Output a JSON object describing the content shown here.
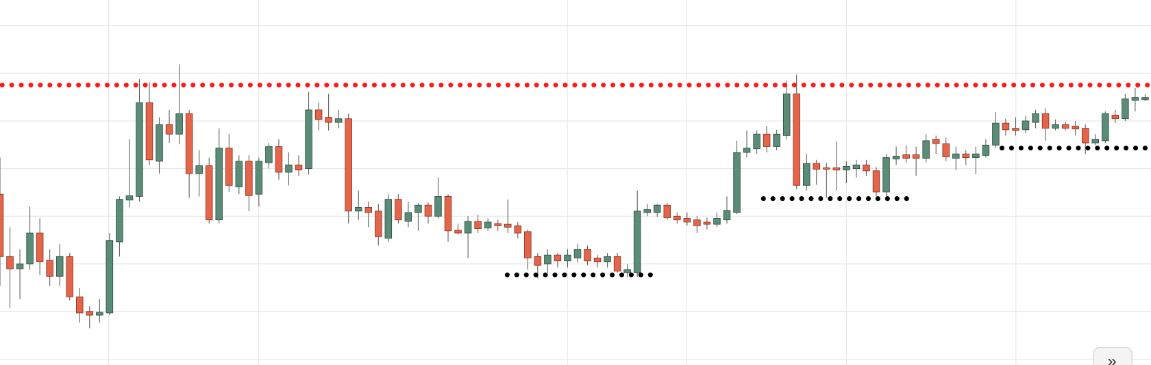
{
  "chart_data": {
    "type": "candlestick",
    "ylim": [
      0,
      498
    ],
    "grid": true,
    "up_color": "#5b8c78",
    "down_color": "#e5654a",
    "open": [
      233,
      148,
      131,
      138,
      180,
      143,
      121,
      148,
      93,
      73,
      68,
      71,
      168,
      225,
      230,
      358,
      278,
      328,
      315,
      343,
      261,
      272,
      198,
      296,
      243,
      278,
      233,
      276,
      298,
      263,
      273,
      268,
      348,
      338,
      331,
      336,
      210,
      215,
      210,
      173,
      226,
      196,
      208,
      218,
      203,
      230,
      184,
      180,
      196,
      187,
      193,
      192,
      190,
      182,
      148,
      138,
      150,
      142,
      146,
      158,
      146,
      141,
      148,
      126,
      126,
      208,
      208,
      218,
      203,
      200,
      198,
      195,
      192,
      198,
      208,
      290,
      295,
      315,
      298,
      313,
      370,
      245,
      275,
      269,
      269,
      266,
      268,
      273,
      265,
      236,
      281,
      287,
      287,
      282,
      308,
      302,
      282,
      288,
      283,
      286,
      300,
      330,
      323,
      321,
      331,
      343,
      323,
      328,
      326,
      323,
      303,
      306,
      341,
      336,
      361,
      362
    ],
    "high": [
      283,
      188,
      158,
      216,
      200,
      158,
      165,
      153,
      105,
      80,
      90,
      180,
      230,
      308,
      390,
      386,
      338,
      348,
      410,
      348,
      293,
      283,
      323,
      315,
      286,
      286,
      283,
      303,
      308,
      290,
      286,
      373,
      358,
      370,
      348,
      343,
      238,
      223,
      220,
      233,
      233,
      223,
      221,
      222,
      256,
      233,
      193,
      203,
      205,
      200,
      198,
      226,
      195,
      185,
      153,
      158,
      153,
      158,
      165,
      163,
      150,
      153,
      153,
      138,
      238,
      220,
      220,
      221,
      208,
      208,
      203,
      201,
      208,
      230,
      306,
      320,
      320,
      326,
      321,
      388,
      396,
      288,
      280,
      276,
      305,
      278,
      280,
      280,
      270,
      288,
      298,
      300,
      298,
      315,
      313,
      310,
      298,
      293,
      298,
      308,
      345,
      336,
      338,
      340,
      348,
      350,
      335,
      332,
      333,
      328,
      315,
      346,
      348,
      370,
      378,
      370
    ],
    "low": [
      108,
      78,
      90,
      130,
      123,
      108,
      108,
      88,
      58,
      50,
      58,
      68,
      148,
      215,
      223,
      273,
      261,
      303,
      301,
      228,
      230,
      193,
      193,
      236,
      233,
      210,
      216,
      268,
      253,
      245,
      258,
      260,
      320,
      320,
      323,
      193,
      198,
      188,
      163,
      168,
      193,
      188,
      183,
      193,
      200,
      168,
      178,
      146,
      180,
      183,
      183,
      180,
      173,
      130,
      118,
      126,
      133,
      133,
      140,
      136,
      133,
      133,
      126,
      120,
      120,
      203,
      202,
      198,
      193,
      190,
      180,
      185,
      188,
      193,
      206,
      283,
      288,
      290,
      293,
      308,
      240,
      238,
      246,
      228,
      238,
      248,
      256,
      258,
      230,
      230,
      273,
      276,
      258,
      276,
      288,
      278,
      266,
      273,
      260,
      283,
      296,
      313,
      313,
      316,
      323,
      306,
      320,
      320,
      313,
      288,
      300,
      303,
      330,
      333,
      346,
      360
    ],
    "close": [
      148,
      131,
      138,
      180,
      141,
      121,
      148,
      93,
      71,
      68,
      72,
      170,
      226,
      231,
      358,
      280,
      328,
      315,
      343,
      261,
      272,
      198,
      296,
      245,
      278,
      231,
      278,
      298,
      263,
      273,
      266,
      348,
      335,
      331,
      336,
      210,
      215,
      208,
      175,
      226,
      198,
      208,
      218,
      203,
      230,
      183,
      180,
      196,
      186,
      195,
      190,
      188,
      180,
      146,
      136,
      150,
      142,
      150,
      158,
      142,
      141,
      148,
      128,
      130,
      210,
      212,
      218,
      201,
      198,
      195,
      190,
      192,
      200,
      211,
      290,
      296,
      315,
      298,
      315,
      370,
      245,
      275,
      267,
      267,
      266,
      271,
      273,
      265,
      236,
      283,
      285,
      282,
      282,
      306,
      302,
      284,
      288,
      283,
      288,
      300,
      330,
      321,
      320,
      333,
      343,
      323,
      328,
      323,
      322,
      303,
      308,
      343,
      336,
      363,
      365,
      365
    ],
    "levels": [
      {
        "value": 382,
        "color": "#ff1a1a"
      },
      {
        "value": 123,
        "color": "#000000"
      },
      {
        "value": 227,
        "color": "#000000"
      },
      {
        "value": 296,
        "color": "#000000"
      }
    ]
  },
  "ui": {
    "scroll_button": "»"
  }
}
